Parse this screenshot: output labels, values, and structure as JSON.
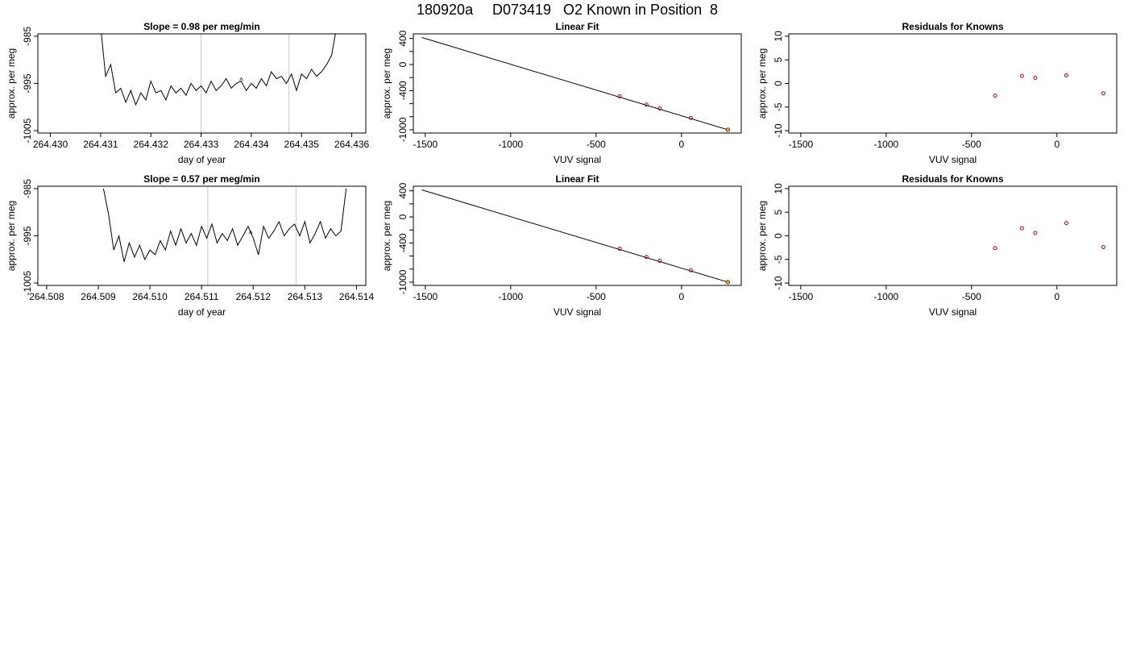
{
  "page": {
    "title_parts": [
      "180920a",
      "D073419",
      "O2 Known in Position",
      "8"
    ]
  },
  "colors": {
    "line": "#000000",
    "points": "#cc0000",
    "highlight": "#f0a030",
    "vlines": "#c8c8c8",
    "background": "#ffffff"
  },
  "chart_data": [
    {
      "id": "ts1",
      "type": "line",
      "title": "Slope =  0.98  per meg/min",
      "xlabel": "day of year",
      "ylabel": "approx. per meg",
      "xlim": [
        264.42975,
        264.43628
      ],
      "ylim": [
        -1005.5,
        -984.5
      ],
      "xticks": [
        264.43,
        264.431,
        264.432,
        264.433,
        264.434,
        264.435,
        264.436
      ],
      "xtick_labels": [
        "264.430",
        "264.431",
        "264.432",
        "264.433",
        "264.434",
        "264.435",
        "264.436"
      ],
      "yticks": [
        -1005,
        -995,
        -985
      ],
      "ytick_labels": [
        "-1005",
        "-995",
        "-985"
      ],
      "vlines": [
        264.433,
        264.43475
      ],
      "marker": {
        "x": 264.4338,
        "y": -994.3
      },
      "series": [
        {
          "x": [
            264.431,
            264.4311,
            264.4312,
            264.4313,
            264.4314,
            264.4315,
            264.4316,
            264.4317,
            264.4318,
            264.4319,
            264.432,
            264.4321,
            264.4322,
            264.4323,
            264.4324,
            264.4325,
            264.4326,
            264.4327,
            264.4328,
            264.4329,
            264.433,
            264.4331,
            264.4332,
            264.4333,
            264.4334,
            264.4335,
            264.4336,
            264.4337,
            264.4338,
            264.4339,
            264.434,
            264.4341,
            264.4342,
            264.4343,
            264.4344,
            264.4345,
            264.4346,
            264.4347,
            264.4348,
            264.4349,
            264.435,
            264.4351,
            264.4352,
            264.4353,
            264.4354,
            264.4355,
            264.4356,
            264.4357
          ],
          "y": [
            -983,
            -993.5,
            -991,
            -997,
            -996,
            -999,
            -996.5,
            -999.5,
            -997,
            -998.5,
            -994.5,
            -997,
            -996.5,
            -998.5,
            -995.5,
            -997,
            -996,
            -997.5,
            -995,
            -996.5,
            -995.5,
            -997,
            -994.5,
            -996.5,
            -995.5,
            -994,
            -996,
            -995,
            -994.5,
            -996.5,
            -995,
            -996,
            -994,
            -995.5,
            -992.5,
            -994,
            -993.5,
            -995,
            -993,
            -996.5,
            -993,
            -994,
            -992,
            -993.5,
            -992.5,
            -991,
            -989,
            -983
          ]
        }
      ]
    },
    {
      "id": "fit1",
      "type": "scatter",
      "title": "Linear Fit",
      "xlabel": "VUV signal",
      "ylabel": "approx. per meg",
      "xlim": [
        -1570,
        350
      ],
      "ylim": [
        -1050,
        470
      ],
      "xticks": [
        -1500,
        -1000,
        -500,
        0
      ],
      "xtick_labels": [
        "-1500",
        "-1000",
        "-500",
        "0"
      ],
      "yticks": [
        -1000,
        -800,
        -600,
        -400,
        -200,
        0,
        200,
        400
      ],
      "ytick_labels": [
        "-1000",
        "",
        "",
        "-400",
        "",
        "0",
        "",
        "400"
      ],
      "fit_line": {
        "x": [
          -1520,
          272
        ],
        "y": [
          414,
          -1000
        ]
      },
      "points": {
        "x": [
          -362,
          -205,
          -127,
          55
        ],
        "y": [
          -487,
          -614,
          -673,
          -818
        ]
      },
      "highlight": {
        "x": [
          272
        ],
        "y": [
          -1000
        ]
      }
    },
    {
      "id": "res1",
      "type": "scatter",
      "title": "Residuals for Knowns",
      "xlabel": "VUV signal",
      "ylabel": "approx. per meg",
      "xlim": [
        -1570,
        350
      ],
      "ylim": [
        -10.5,
        10.5
      ],
      "xticks": [
        -1500,
        -1000,
        -500,
        0
      ],
      "xtick_labels": [
        "-1500",
        "-1000",
        "-500",
        "0"
      ],
      "yticks": [
        -10,
        -5,
        0,
        5,
        10
      ],
      "ytick_labels": [
        "-10",
        "-5",
        "0",
        "5",
        "10"
      ],
      "points": {
        "x": [
          -362,
          -205,
          -127,
          55,
          272
        ],
        "y": [
          -2.6,
          1.6,
          1.2,
          1.7,
          -2.1
        ]
      }
    },
    {
      "id": "ts2",
      "type": "line",
      "title": "Slope =  0.57  per meg/min",
      "xlabel": "day of year",
      "ylabel": "approx. per meg",
      "xlim": [
        264.50783,
        264.51418
      ],
      "ylim": [
        -1005.5,
        -984.5
      ],
      "xticks": [
        264.508,
        264.509,
        264.51,
        264.511,
        264.512,
        264.513,
        264.514
      ],
      "xtick_labels": [
        "264.508",
        "264.509",
        "264.510",
        "264.511",
        "264.512",
        "264.513",
        "264.514"
      ],
      "yticks": [
        -1005,
        -995,
        -985
      ],
      "ytick_labels": [
        "-1005",
        "-995",
        "-985"
      ],
      "vlines": [
        264.51112,
        264.51283
      ],
      "marker": {
        "x": 264.51195,
        "y": -994.5
      },
      "series": [
        {
          "x": [
            264.5091,
            264.5092,
            264.5093,
            264.5094,
            264.5095,
            264.5096,
            264.5097,
            264.5098,
            264.5099,
            264.51,
            264.5101,
            264.5102,
            264.5103,
            264.5104,
            264.5105,
            264.5106,
            264.5107,
            264.5108,
            264.5109,
            264.511,
            264.5111,
            264.5112,
            264.5113,
            264.5114,
            264.5115,
            264.5116,
            264.5117,
            264.5118,
            264.5119,
            264.512,
            264.5121,
            264.5122,
            264.5123,
            264.5124,
            264.5125,
            264.5126,
            264.5127,
            264.5128,
            264.5129,
            264.513,
            264.5131,
            264.5132,
            264.5133,
            264.5134,
            264.5135,
            264.5136,
            264.5137,
            264.5138
          ],
          "y": [
            -985,
            -990.5,
            -998,
            -995,
            -1000.5,
            -996.5,
            -999.5,
            -997,
            -1000,
            -998,
            -999,
            -996,
            -998,
            -994,
            -997,
            -993.5,
            -996.5,
            -994.5,
            -997,
            -993,
            -995.5,
            -992.5,
            -996.5,
            -994.5,
            -996,
            -993.5,
            -997,
            -995,
            -993,
            -995.5,
            -999,
            -993,
            -995.5,
            -994,
            -992,
            -995,
            -993.5,
            -992.5,
            -995,
            -992,
            -996.5,
            -994.5,
            -992,
            -995.5,
            -993.5,
            -995,
            -994,
            -985
          ]
        }
      ]
    },
    {
      "id": "fit2",
      "type": "scatter",
      "title": "Linear Fit",
      "xlabel": "VUV signal",
      "ylabel": "approx. per meg",
      "xlim": [
        -1570,
        350
      ],
      "ylim": [
        -1050,
        470
      ],
      "xticks": [
        -1500,
        -1000,
        -500,
        0
      ],
      "xtick_labels": [
        "-1500",
        "-1000",
        "-500",
        "0"
      ],
      "yticks": [
        -1000,
        -800,
        -600,
        -400,
        -200,
        0,
        200,
        400
      ],
      "ytick_labels": [
        "-1000",
        "",
        "",
        "-400",
        "",
        "0",
        "",
        "400"
      ],
      "fit_line": {
        "x": [
          -1520,
          272
        ],
        "y": [
          414,
          -1000
        ]
      },
      "points": {
        "x": [
          -362,
          -205,
          -127,
          55
        ],
        "y": [
          -487,
          -614,
          -673,
          -818
        ]
      },
      "highlight": {
        "x": [
          272
        ],
        "y": [
          -1000
        ]
      }
    },
    {
      "id": "res2",
      "type": "scatter",
      "title": "Residuals for Knowns",
      "xlabel": "VUV signal",
      "ylabel": "approx. per meg",
      "xlim": [
        -1570,
        350
      ],
      "ylim": [
        -10.5,
        10.5
      ],
      "xticks": [
        -1500,
        -1000,
        -500,
        0
      ],
      "xtick_labels": [
        "-1500",
        "-1000",
        "-500",
        "0"
      ],
      "yticks": [
        -10,
        -5,
        0,
        5,
        10
      ],
      "ytick_labels": [
        "-10",
        "-5",
        "0",
        "5",
        "10"
      ],
      "points": {
        "x": [
          -362,
          -205,
          -127,
          55,
          272
        ],
        "y": [
          -2.6,
          1.6,
          0.6,
          2.7,
          -2.4
        ]
      }
    }
  ]
}
